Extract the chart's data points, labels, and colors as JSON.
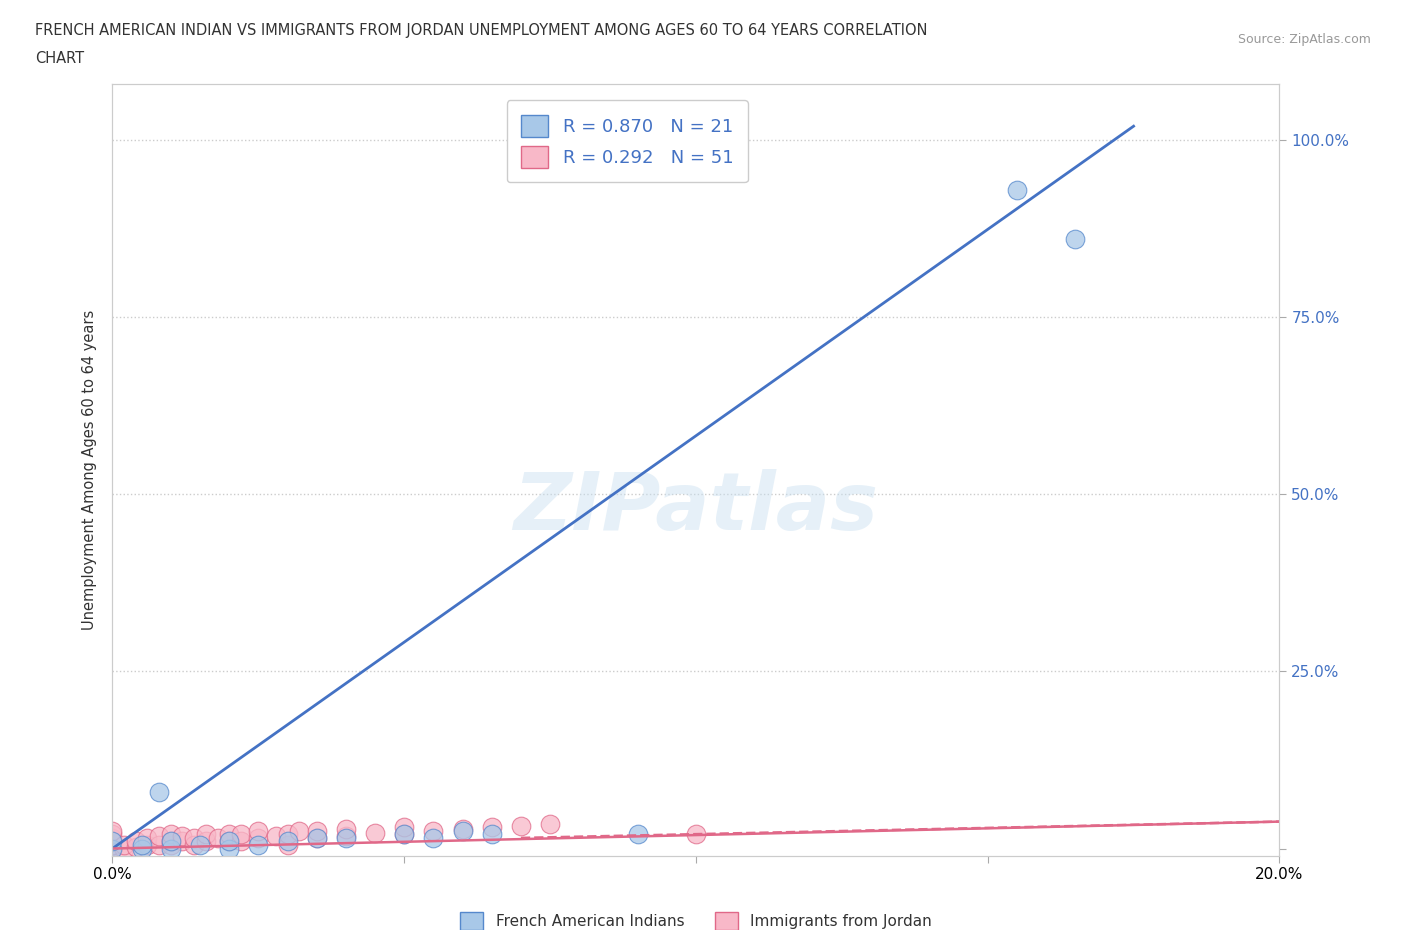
{
  "title_line1": "FRENCH AMERICAN INDIAN VS IMMIGRANTS FROM JORDAN UNEMPLOYMENT AMONG AGES 60 TO 64 YEARS CORRELATION",
  "title_line2": "CHART",
  "source_text": "Source: ZipAtlas.com",
  "ylabel": "Unemployment Among Ages 60 to 64 years",
  "xlim": [
    0.0,
    0.2
  ],
  "ylim": [
    -0.01,
    1.08
  ],
  "blue_scatter_x": [
    0.0,
    0.0,
    0.005,
    0.005,
    0.008,
    0.01,
    0.01,
    0.015,
    0.02,
    0.02,
    0.025,
    0.03,
    0.035,
    0.04,
    0.05,
    0.055,
    0.06,
    0.065,
    0.09,
    0.155,
    0.165
  ],
  "blue_scatter_y": [
    0.0,
    0.01,
    0.0,
    0.005,
    0.08,
    0.0,
    0.01,
    0.005,
    0.0,
    0.01,
    0.005,
    0.01,
    0.015,
    0.015,
    0.02,
    0.015,
    0.025,
    0.02,
    0.02,
    0.93,
    0.86
  ],
  "pink_scatter_x": [
    0.0,
    0.0,
    0.0,
    0.0,
    0.0,
    0.0,
    0.0,
    0.0,
    0.0,
    0.0,
    0.002,
    0.002,
    0.004,
    0.004,
    0.006,
    0.006,
    0.008,
    0.008,
    0.01,
    0.01,
    0.01,
    0.012,
    0.012,
    0.014,
    0.014,
    0.016,
    0.016,
    0.018,
    0.02,
    0.02,
    0.022,
    0.022,
    0.025,
    0.025,
    0.028,
    0.03,
    0.03,
    0.032,
    0.035,
    0.035,
    0.04,
    0.04,
    0.045,
    0.05,
    0.05,
    0.055,
    0.06,
    0.065,
    0.07,
    0.075,
    0.1
  ],
  "pink_scatter_y": [
    0.0,
    0.0,
    0.0,
    0.0,
    0.005,
    0.005,
    0.01,
    0.015,
    0.02,
    0.025,
    0.0,
    0.005,
    0.002,
    0.01,
    0.005,
    0.015,
    0.005,
    0.018,
    0.005,
    0.01,
    0.02,
    0.01,
    0.018,
    0.005,
    0.015,
    0.01,
    0.02,
    0.015,
    0.01,
    0.02,
    0.01,
    0.02,
    0.015,
    0.025,
    0.018,
    0.005,
    0.02,
    0.025,
    0.015,
    0.025,
    0.018,
    0.028,
    0.022,
    0.02,
    0.03,
    0.025,
    0.028,
    0.03,
    0.032,
    0.035,
    0.02
  ],
  "blue_line_x": [
    0.0,
    0.175
  ],
  "blue_line_y": [
    0.0,
    1.02
  ],
  "pink_line_x": [
    0.0,
    0.2
  ],
  "pink_line_y": [
    0.0,
    0.038
  ],
  "pink_dashed_line_x": [
    0.07,
    0.2
  ],
  "pink_dashed_line_y": [
    0.015,
    0.038
  ],
  "blue_scatter_color": "#a8c8e8",
  "blue_scatter_edge": "#5588cc",
  "pink_scatter_color": "#f8b8c8",
  "pink_scatter_edge": "#e06888",
  "blue_line_color": "#4472c4",
  "pink_line_color": "#e06888",
  "R_blue": "0.870",
  "N_blue": "21",
  "R_pink": "0.292",
  "N_pink": "51",
  "legend_label_blue": "French American Indians",
  "legend_label_pink": "Immigrants from Jordan",
  "watermark": "ZIPatlas",
  "background_color": "#ffffff",
  "grid_color": "#cccccc",
  "right_tick_color": "#4472c4"
}
